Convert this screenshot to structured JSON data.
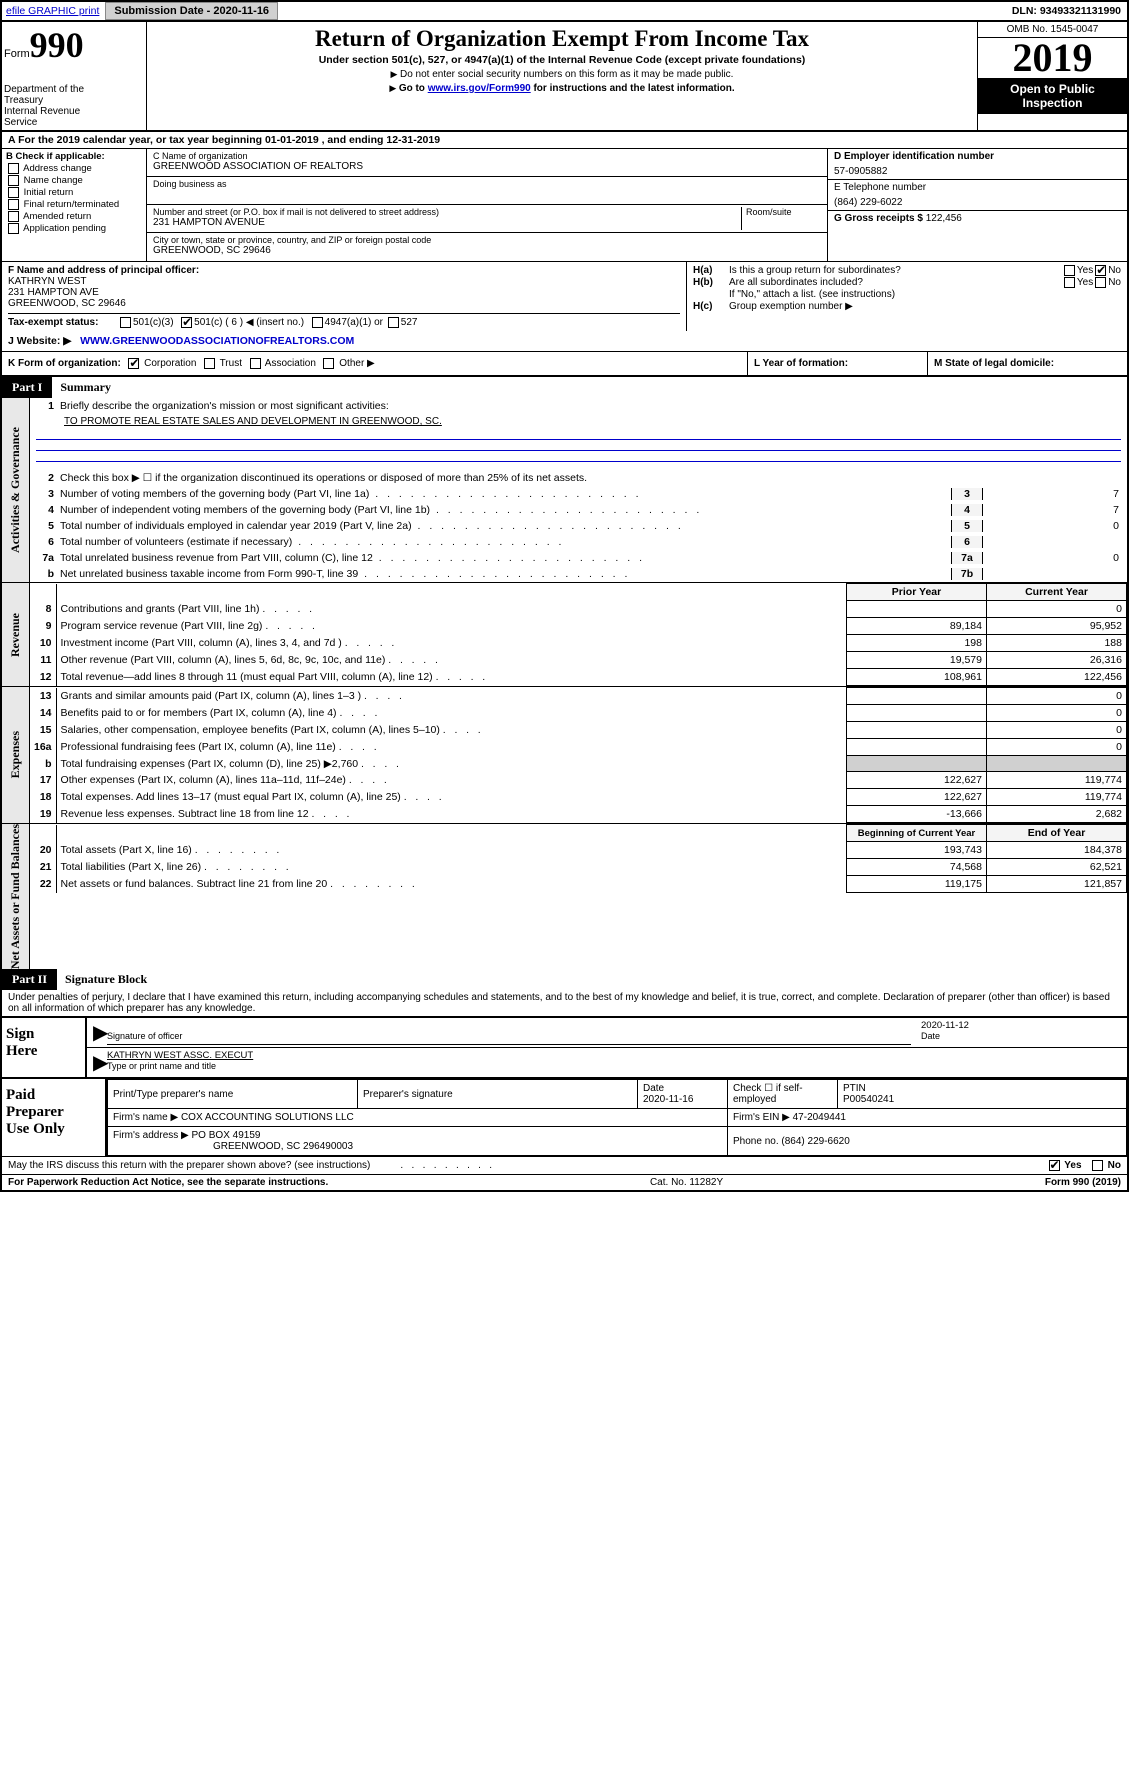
{
  "topbar": {
    "efile_link": "efile GRAPHIC print",
    "submission_label": "Submission Date - 2020-11-16",
    "dln": "DLN: 93493321131990"
  },
  "header": {
    "form_label": "Form",
    "form_number": "990",
    "dept": "Department of the Treasury\nInternal Revenue Service",
    "title": "Return of Organization Exempt From Income Tax",
    "subtitle": "Under section 501(c), 527, or 4947(a)(1) of the Internal Revenue Code (except private foundations)",
    "note1": "Do not enter social security numbers on this form as it may be made public.",
    "note2_prefix": "Go to ",
    "note2_link": "www.irs.gov/Form990",
    "note2_suffix": " for instructions and the latest information.",
    "omb": "OMB No. 1545-0047",
    "year": "2019",
    "open_public": "Open to Public Inspection"
  },
  "period": "For the 2019 calendar year, or tax year beginning 01-01-2019    , and ending 12-31-2019",
  "checkboxes": {
    "b_label": "B Check if applicable:",
    "address_change": "Address change",
    "name_change": "Name change",
    "initial_return": "Initial return",
    "final_return": "Final return/terminated",
    "amended_return": "Amended return",
    "application_pending": "Application pending"
  },
  "entity": {
    "name_label": "C Name of organization",
    "name": "GREENWOOD ASSOCIATION OF REALTORS",
    "dba_label": "Doing business as",
    "dba": "",
    "address_label": "Number and street (or P.O. box if mail is not delivered to street address)",
    "room_label": "Room/suite",
    "address": "231 HAMPTON AVENUE",
    "city_label": "City or town, state or province, country, and ZIP or foreign postal code",
    "city": "GREENWOOD, SC  29646",
    "ein_label": "D Employer identification number",
    "ein": "57-0905882",
    "phone_label": "E Telephone number",
    "phone": "(864) 229-6022",
    "gross_label": "G Gross receipts $ ",
    "gross": "122,456"
  },
  "officer": {
    "label": "F  Name and address of principal officer:",
    "name": "KATHRYN WEST",
    "addr1": "231 HAMPTON AVE",
    "addr2": "GREENWOOD, SC  29646"
  },
  "group": {
    "ha_label": "H(a)",
    "ha_text": "Is this a group return for subordinates?",
    "hb_label": "H(b)",
    "hb_text": "Are all subordinates included?",
    "hb_note": "If \"No,\" attach a list. (see instructions)",
    "hc_label": "H(c)",
    "hc_text": "Group exemption number ▶",
    "yes": "Yes",
    "no": "No"
  },
  "status": {
    "label": "Tax-exempt status:",
    "opt1": "501(c)(3)",
    "opt2": "501(c) ( 6 ) ◀ (insert no.)",
    "opt3": "4947(a)(1) or",
    "opt4": "527"
  },
  "website": {
    "label": "J    Website: ▶",
    "value": "WWW.GREENWOODASSOCIATIONOFREALTORS.COM"
  },
  "korg": {
    "label": "K Form of organization:",
    "corp": "Corporation",
    "trust": "Trust",
    "assoc": "Association",
    "other": "Other ▶",
    "l_label": "L Year of formation:",
    "l_value": "",
    "m_label": "M State of legal domicile:",
    "m_value": ""
  },
  "part1": {
    "num": "Part I",
    "title": "Summary"
  },
  "summary": {
    "line1_label": "Briefly describe the organization's mission or most significant activities:",
    "line1_text": "TO PROMOTE REAL ESTATE SALES AND DEVELOPMENT IN GREENWOOD, SC.",
    "line2": "Check this box ▶ ☐  if the organization discontinued its operations or disposed of more than 25% of its net assets.",
    "line3": "Number of voting members of the governing body (Part VI, line 1a)",
    "line3_val": "7",
    "line4": "Number of independent voting members of the governing body (Part VI, line 1b)",
    "line4_val": "7",
    "line5": "Total number of individuals employed in calendar year 2019 (Part V, line 2a)",
    "line5_val": "0",
    "line6": "Total number of volunteers (estimate if necessary)",
    "line6_val": "",
    "line7a": "Total unrelated business revenue from Part VIII, column (C), line 12",
    "line7a_val": "0",
    "line7b": "Net unrelated business taxable income from Form 990-T, line 39",
    "line7b_val": ""
  },
  "revenue_header": {
    "prior": "Prior Year",
    "current": "Current Year"
  },
  "revenue": [
    {
      "num": "8",
      "desc": "Contributions and grants (Part VIII, line 1h)",
      "prior": "",
      "current": "0"
    },
    {
      "num": "9",
      "desc": "Program service revenue (Part VIII, line 2g)",
      "prior": "89,184",
      "current": "95,952"
    },
    {
      "num": "10",
      "desc": "Investment income (Part VIII, column (A), lines 3, 4, and 7d )",
      "prior": "198",
      "current": "188"
    },
    {
      "num": "11",
      "desc": "Other revenue (Part VIII, column (A), lines 5, 6d, 8c, 9c, 10c, and 11e)",
      "prior": "19,579",
      "current": "26,316"
    },
    {
      "num": "12",
      "desc": "Total revenue—add lines 8 through 11 (must equal Part VIII, column (A), line 12)",
      "prior": "108,961",
      "current": "122,456"
    }
  ],
  "expenses": [
    {
      "num": "13",
      "desc": "Grants and similar amounts paid (Part IX, column (A), lines 1–3 )",
      "prior": "",
      "current": "0"
    },
    {
      "num": "14",
      "desc": "Benefits paid to or for members (Part IX, column (A), line 4)",
      "prior": "",
      "current": "0"
    },
    {
      "num": "15",
      "desc": "Salaries, other compensation, employee benefits (Part IX, column (A), lines 5–10)",
      "prior": "",
      "current": "0"
    },
    {
      "num": "16a",
      "desc": "Professional fundraising fees (Part IX, column (A), line 11e)",
      "prior": "",
      "current": "0"
    },
    {
      "num": "b",
      "desc": "Total fundraising expenses (Part IX, column (D), line 25) ▶2,760",
      "prior": "SHADE",
      "current": "SHADE"
    },
    {
      "num": "17",
      "desc": "Other expenses (Part IX, column (A), lines 11a–11d, 11f–24e)",
      "prior": "122,627",
      "current": "119,774"
    },
    {
      "num": "18",
      "desc": "Total expenses. Add lines 13–17 (must equal Part IX, column (A), line 25)",
      "prior": "122,627",
      "current": "119,774"
    },
    {
      "num": "19",
      "desc": "Revenue less expenses. Subtract line 18 from line 12",
      "prior": "-13,666",
      "current": "2,682"
    }
  ],
  "netassets_header": {
    "begin": "Beginning of Current Year",
    "end": "End of Year"
  },
  "netassets": [
    {
      "num": "20",
      "desc": "Total assets (Part X, line 16)",
      "prior": "193,743",
      "current": "184,378"
    },
    {
      "num": "21",
      "desc": "Total liabilities (Part X, line 26)",
      "prior": "74,568",
      "current": "62,521"
    },
    {
      "num": "22",
      "desc": "Net assets or fund balances. Subtract line 21 from line 20",
      "prior": "119,175",
      "current": "121,857"
    }
  ],
  "vtabs": {
    "gov": "Activities & Governance",
    "rev": "Revenue",
    "exp": "Expenses",
    "net": "Net Assets or Fund Balances"
  },
  "part2": {
    "num": "Part II",
    "title": "Signature Block"
  },
  "declaration": "Under penalties of perjury, I declare that I have examined this return, including accompanying schedules and statements, and to the best of my knowledge and belief, it is true, correct, and complete. Declaration of preparer (other than officer) is based on all information of which preparer has any knowledge.",
  "sign": {
    "label": "Sign Here",
    "sig_officer": "Signature of officer",
    "date": "Date",
    "date_val": "2020-11-12",
    "name": "KATHRYN WEST  ASSC. EXECUT",
    "name_label": "Type or print name and title"
  },
  "preparer": {
    "label": "Paid Preparer Use Only",
    "print_label": "Print/Type preparer's name",
    "print_val": "",
    "sig_label": "Preparer's signature",
    "date_label": "Date",
    "date_val": "2020-11-16",
    "check_label": "Check ☐ if self-employed",
    "ptin_label": "PTIN",
    "ptin_val": "P00540241",
    "firm_name_label": "Firm's name    ▶",
    "firm_name": "COX ACCOUNTING SOLUTIONS LLC",
    "firm_ein_label": "Firm's EIN ▶",
    "firm_ein": "47-2049441",
    "firm_addr_label": "Firm's address ▶",
    "firm_addr": "PO BOX 49159",
    "firm_city": "GREENWOOD, SC  296490003",
    "phone_label": "Phone no.",
    "phone": "(864) 229-6620"
  },
  "footer": {
    "discuss": "May the IRS discuss this return with the preparer shown above? (see instructions)",
    "yes": "Yes",
    "no": "No",
    "paperwork": "For Paperwork Reduction Act Notice, see the separate instructions.",
    "cat": "Cat. No. 11282Y",
    "form": "Form 990 (2019)"
  }
}
